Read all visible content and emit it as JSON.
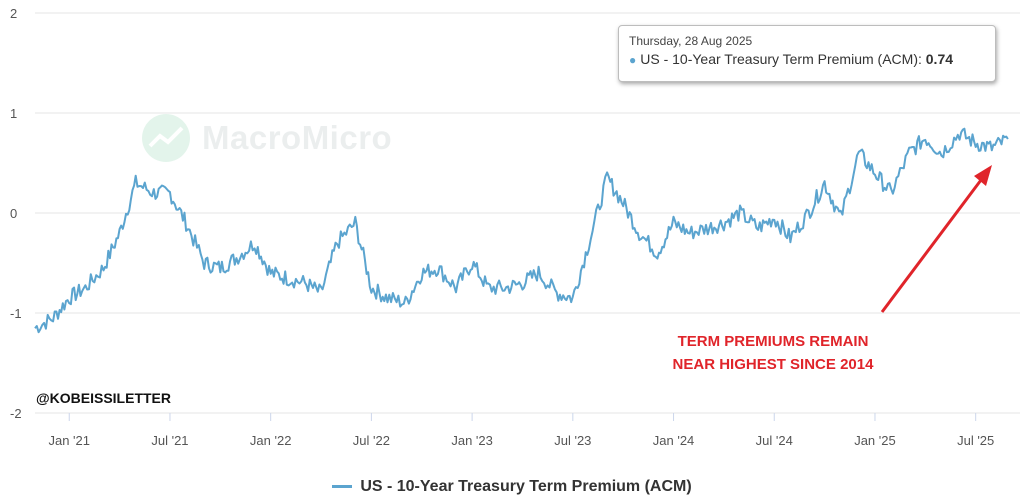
{
  "chart_data": {
    "type": "line",
    "title": "",
    "xlabel": "",
    "ylabel": "",
    "ylim": [
      -2,
      2
    ],
    "y_ticks": [
      "2",
      "1",
      "0",
      "-1",
      "-2"
    ],
    "x_tick_labels": [
      "Jan '21",
      "Jul '21",
      "Jan '22",
      "Jul '22",
      "Jan '23",
      "Jul '23",
      "Jan '24",
      "Jul '24",
      "Jan '25",
      "Jul '25"
    ],
    "x_range": [
      2020.83,
      2025.72
    ],
    "series": [
      {
        "name": "US - 10-Year Treasury Term Premium (ACM)",
        "color": "#5ba4cf",
        "x": [
          2020.83,
          2020.92,
          2021.0,
          2021.08,
          2021.17,
          2021.25,
          2021.33,
          2021.42,
          2021.5,
          2021.58,
          2021.67,
          2021.75,
          2021.83,
          2021.92,
          2022.0,
          2022.08,
          2022.17,
          2022.25,
          2022.33,
          2022.42,
          2022.5,
          2022.58,
          2022.67,
          2022.75,
          2022.83,
          2022.92,
          2023.0,
          2023.08,
          2023.17,
          2023.25,
          2023.33,
          2023.42,
          2023.5,
          2023.58,
          2023.67,
          2023.75,
          2023.83,
          2023.92,
          2024.0,
          2024.08,
          2024.17,
          2024.25,
          2024.33,
          2024.42,
          2024.5,
          2024.58,
          2024.67,
          2024.75,
          2024.83,
          2024.92,
          2025.0,
          2025.08,
          2025.17,
          2025.25,
          2025.33,
          2025.42,
          2025.5,
          2025.58,
          2025.66
        ],
        "values": [
          -1.15,
          -1.05,
          -0.85,
          -0.75,
          -0.55,
          -0.2,
          0.3,
          0.2,
          0.2,
          -0.1,
          -0.5,
          -0.55,
          -0.45,
          -0.3,
          -0.6,
          -0.65,
          -0.7,
          -0.8,
          -0.3,
          -0.1,
          -0.75,
          -0.85,
          -0.9,
          -0.6,
          -0.55,
          -0.75,
          -0.5,
          -0.75,
          -0.75,
          -0.7,
          -0.6,
          -0.8,
          -0.85,
          -0.3,
          0.35,
          0.1,
          -0.2,
          -0.4,
          -0.1,
          -0.2,
          -0.15,
          -0.1,
          0.0,
          -0.15,
          -0.05,
          -0.25,
          0.0,
          0.3,
          -0.05,
          0.6,
          0.4,
          0.2,
          0.6,
          0.75,
          0.6,
          0.8,
          0.7,
          0.65,
          0.74
        ]
      }
    ],
    "annotations": [
      "TERM PREMIUMS REMAIN",
      "NEAR HIGHEST SINCE 2014"
    ]
  },
  "tooltip": {
    "date": "Thursday, 28 Aug 2025",
    "series_label": "US - 10-Year Treasury Term Premium (ACM):",
    "value": "0.74"
  },
  "watermark": "MacroMicro",
  "handle": "@KOBEISSILETTER",
  "legend": {
    "label": "US - 10-Year Treasury Term Premium (ACM)"
  },
  "colors": {
    "line": "#5ba4cf",
    "annotation": "#e0242a",
    "grid": "#e6e6e6"
  }
}
